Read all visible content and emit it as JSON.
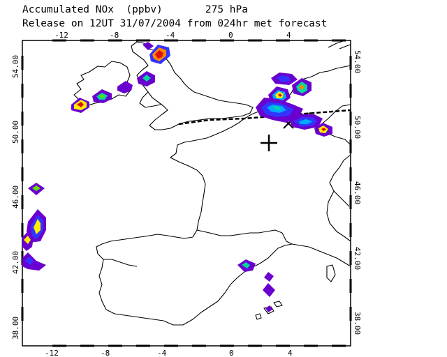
{
  "header": {
    "line1": "Accumulated NOx  (ppbv)       275 hPa",
    "line2": "Release on 12UT 31/07/2004 from 024hr met forecast"
  },
  "map": {
    "lon_labels": [
      "-12",
      "-8",
      "-4",
      "0",
      "4"
    ],
    "lat_labels_left": [
      "54.00",
      "50.00",
      "46.00",
      "42.00",
      "38.00"
    ],
    "lat_labels_right": [
      "54.00",
      "50.00",
      "46.00",
      "42.00",
      "38.00"
    ],
    "release_marker": {
      "lon": 2.1,
      "lat": 49.4
    },
    "palette": [
      "#6a00d0",
      "#3333ff",
      "#00aaff",
      "#00d8a0",
      "#66dd00",
      "#ffee00",
      "#ff8800",
      "#e01010"
    ]
  }
}
